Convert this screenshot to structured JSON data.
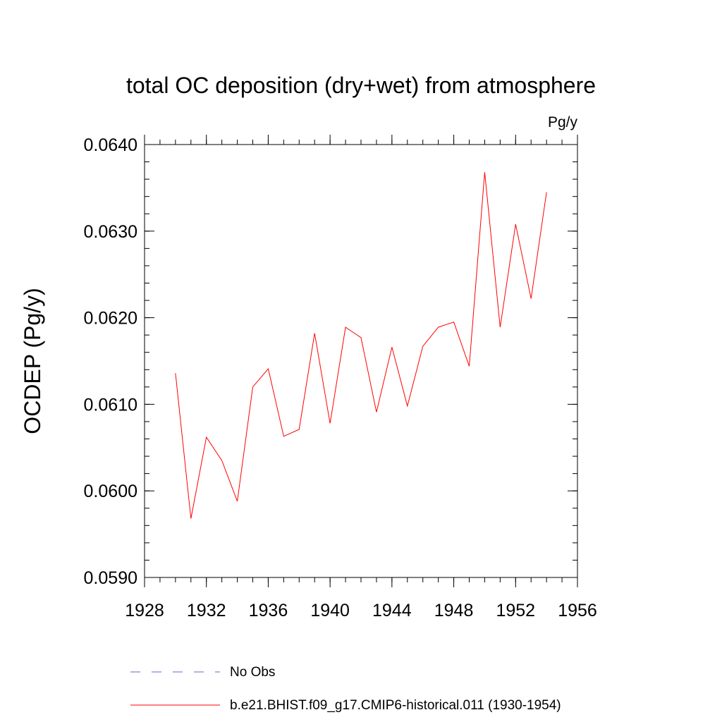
{
  "chart_data": {
    "type": "line",
    "title": "total OC deposition (dry+wet) from atmosphere",
    "units_label": "Pg/y",
    "ylabel": "OCDEP  (Pg/y)",
    "xlabel": "",
    "xlim": [
      1928,
      1956
    ],
    "ylim": [
      0.059,
      0.064
    ],
    "x_major_ticks": [
      1928,
      1932,
      1936,
      1940,
      1944,
      1948,
      1952,
      1956
    ],
    "x_tick_labels": [
      "1928",
      "1932",
      "1936",
      "1940",
      "1944",
      "1948",
      "1952",
      "1956"
    ],
    "x_minor_step": 1,
    "y_major_ticks": [
      0.059,
      0.06,
      0.061,
      0.062,
      0.063,
      0.064
    ],
    "y_tick_labels": [
      "0.0590",
      "0.0600",
      "0.0610",
      "0.0620",
      "0.0630",
      "0.0640"
    ],
    "y_minor_step": 0.0002,
    "grid": false,
    "legend_position": "bottom",
    "series": [
      {
        "name": "b.e21.BHIST.f09_g17.CMIP6-historical.011 (1930-1954)",
        "color": "#ff0000",
        "style": "solid",
        "x": [
          1930,
          1931,
          1932,
          1933,
          1934,
          1935,
          1936,
          1937,
          1938,
          1939,
          1940,
          1941,
          1942,
          1943,
          1944,
          1945,
          1946,
          1947,
          1948,
          1949,
          1950,
          1951,
          1952,
          1953,
          1954
        ],
        "y": [
          0.06136,
          0.05968,
          0.06062,
          0.06035,
          0.05988,
          0.0612,
          0.06141,
          0.06063,
          0.06071,
          0.06182,
          0.06078,
          0.06189,
          0.06177,
          0.06091,
          0.06166,
          0.06098,
          0.06167,
          0.06189,
          0.06195,
          0.06144,
          0.06368,
          0.06189,
          0.06308,
          0.06222,
          0.06345
        ]
      }
    ],
    "legend": [
      {
        "label": "No Obs",
        "color": "#6666cc",
        "style": "dashed"
      },
      {
        "label": "b.e21.BHIST.f09_g17.CMIP6-historical.011 (1930-1954)",
        "color": "#ff0000",
        "style": "solid"
      }
    ]
  }
}
